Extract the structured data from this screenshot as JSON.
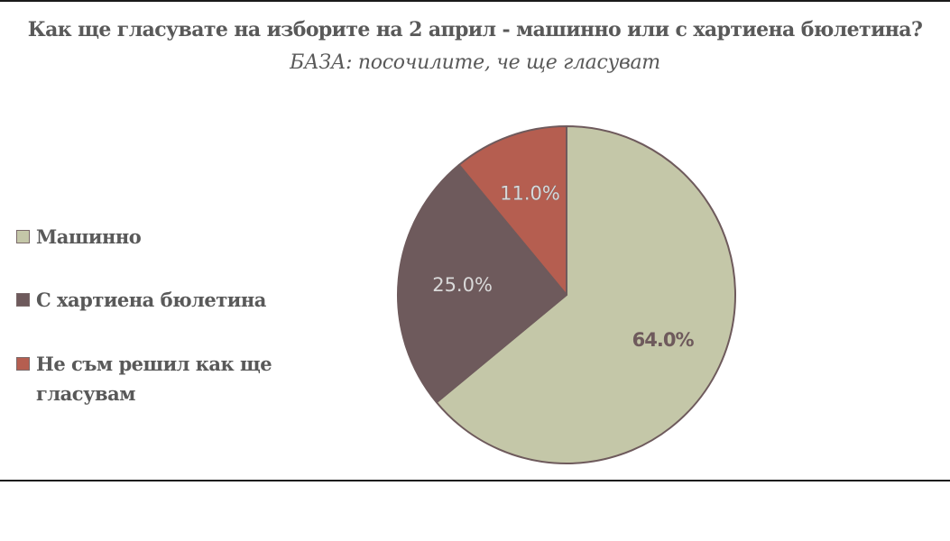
{
  "chart_data": {
    "type": "pie",
    "title": "Как ще гласувате на изборите на 2 април - машинно или с хартиена бюлетина?",
    "subtitle": "БАЗА: посочилите, че ще гласуват",
    "legend_position": "left",
    "slices": [
      {
        "label": "Машинно",
        "value": 64.0,
        "data_label": "64.0%",
        "color": "#c4c7a8",
        "label_color": "#6e5a5c",
        "label_bold": true
      },
      {
        "label": "С хартиена бюлетина",
        "value": 25.0,
        "data_label": "25.0%",
        "color": "#6e5a5c",
        "label_color": "#d9d9d9",
        "label_bold": false
      },
      {
        "label": "Не съм решил как ще гласувам",
        "value": 11.0,
        "data_label": "11.0%",
        "color": "#b55e50",
        "label_color": "#d9d9d9",
        "label_bold": false
      }
    ],
    "edge_color": "#6e5a5c"
  }
}
